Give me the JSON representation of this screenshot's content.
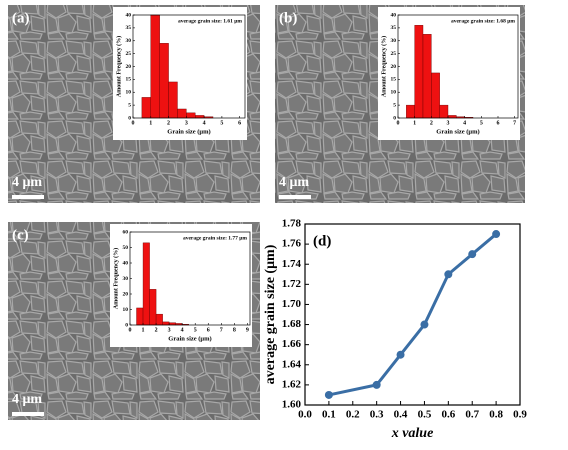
{
  "chart_data": [
    {
      "type": "histogram",
      "label": "(a)",
      "scale_bar": "4 μm",
      "annotation": "average grain size: 1.61 μm",
      "x_label": "Grain size (μm)",
      "y_label": "Amount Frequency (%)",
      "color": "#ee1111",
      "bins": [
        0.5,
        1,
        1.5,
        2,
        2.5,
        3,
        3.5,
        4,
        4.5
      ],
      "values": [
        8,
        40,
        29,
        14,
        3.5,
        2,
        1,
        0.5
      ],
      "xlim": [
        0,
        6.3
      ],
      "xticks": [
        0,
        1,
        2,
        3,
        4,
        5,
        6
      ],
      "ylim": [
        0,
        40
      ],
      "yticks": [
        0,
        5,
        10,
        15,
        20,
        25,
        30,
        35,
        40
      ]
    },
    {
      "type": "histogram",
      "label": "(b)",
      "scale_bar": "4 μm",
      "annotation": "average grain size: 1.68 μm",
      "x_label": "Grain size (μm)",
      "y_label": "Amount Frequency (%)",
      "color": "#ee1111",
      "bins": [
        0.5,
        1,
        1.5,
        2,
        2.5,
        3,
        3.5,
        4,
        4.5
      ],
      "values": [
        5,
        36,
        32.5,
        17.5,
        5,
        1,
        0.5,
        0.3
      ],
      "xlim": [
        0,
        7.2
      ],
      "xticks": [
        0,
        1,
        2,
        3,
        4,
        5,
        6,
        7
      ],
      "ylim": [
        0,
        40
      ],
      "yticks": [
        0,
        5,
        10,
        15,
        20,
        25,
        30,
        35,
        40
      ]
    },
    {
      "type": "histogram",
      "label": "(c)",
      "scale_bar": "4 μm",
      "annotation": "average grain size: 1.77 μm",
      "x_label": "Grain size (μm)",
      "y_label": "Amount Frequency (%)",
      "color": "#ee1111",
      "bins": [
        0.5,
        1,
        1.5,
        2,
        2.5,
        3,
        3.5,
        4,
        4.5
      ],
      "values": [
        11,
        53,
        23,
        7,
        2,
        1.5,
        1,
        0.5
      ],
      "xlim": [
        0,
        9.2
      ],
      "xticks": [
        0,
        1,
        2,
        3,
        4,
        5,
        6,
        7,
        8,
        9
      ],
      "ylim": [
        0,
        60
      ],
      "yticks": [
        0,
        10,
        20,
        30,
        40,
        50,
        60
      ]
    },
    {
      "type": "line",
      "label": "(d)",
      "x_label": "x value",
      "y_label": "average grain size (μm)",
      "color": "#3a6ea5",
      "x": [
        0.1,
        0.3,
        0.4,
        0.5,
        0.6,
        0.7,
        0.8
      ],
      "values": [
        1.61,
        1.62,
        1.65,
        1.68,
        1.73,
        1.75,
        1.77
      ],
      "xlim": [
        0,
        0.9
      ],
      "xticks": [
        {
          "value": 0,
          "label": "0.0"
        },
        0.1,
        0.2,
        0.3,
        0.4,
        0.5,
        0.6,
        0.7,
        0.8,
        0.9
      ],
      "ylim": [
        1.6,
        1.78
      ],
      "yticks": [
        {
          "value": 1.6,
          "label": "1.60"
        },
        1.62,
        1.64,
        1.66,
        1.68,
        {
          "value": 1.7,
          "label": "1.70"
        },
        1.72,
        1.74,
        1.76,
        1.78
      ]
    }
  ]
}
